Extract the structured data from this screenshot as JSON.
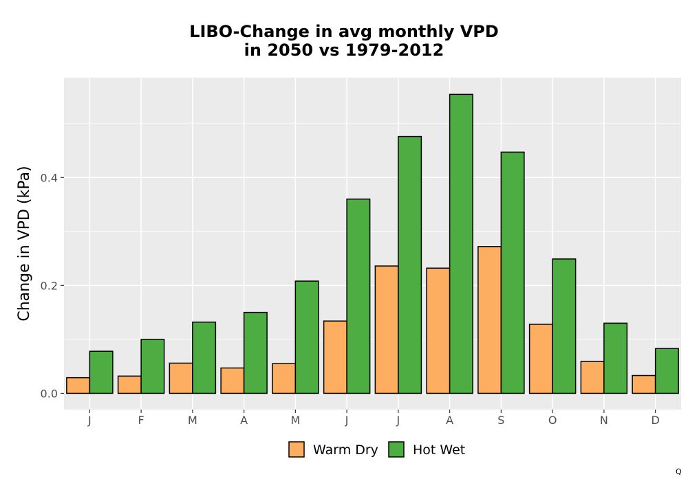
{
  "chart_data": {
    "type": "bar",
    "title_lines": [
      "LIBO-Change in avg monthly VPD",
      "in 2050 vs 1979-2012"
    ],
    "xlabel": "",
    "ylabel": "Change in VPD (kPa)",
    "categories": [
      "J",
      "F",
      "M",
      "A",
      "M",
      "J",
      "J",
      "A",
      "S",
      "O",
      "N",
      "D"
    ],
    "series": [
      {
        "name": "Warm Dry",
        "color": "#FDAE61",
        "values": [
          0.029,
          0.032,
          0.056,
          0.047,
          0.055,
          0.134,
          0.236,
          0.232,
          0.272,
          0.128,
          0.059,
          0.033
        ]
      },
      {
        "name": "Hot Wet",
        "color": "#4DAC42",
        "values": [
          0.078,
          0.1,
          0.132,
          0.15,
          0.208,
          0.36,
          0.476,
          0.554,
          0.447,
          0.249,
          0.13,
          0.083
        ]
      }
    ],
    "ylim": [
      -0.03,
      0.585
    ],
    "yticks": [
      0.0,
      0.2,
      0.4
    ],
    "ytick_labels": [
      "0.0",
      "0.2",
      "0.4"
    ],
    "grid": true,
    "legend_position": "bottom",
    "panel_color": "#EBEBEB",
    "grid_color": "#FFFFFF"
  },
  "footnote": "Q"
}
